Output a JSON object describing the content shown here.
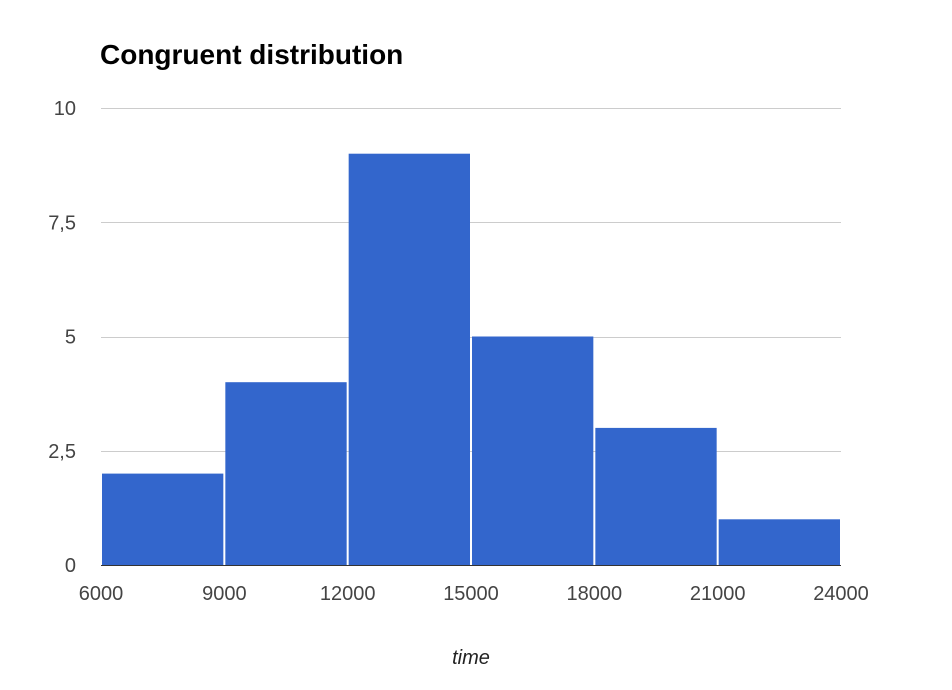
{
  "chart_data": {
    "type": "bar",
    "title": "Congruent distribution",
    "xlabel": "time",
    "ylabel": "",
    "bins": [
      {
        "start": 6000,
        "end": 9000,
        "count": 2
      },
      {
        "start": 9000,
        "end": 12000,
        "count": 4
      },
      {
        "start": 12000,
        "end": 15000,
        "count": 9
      },
      {
        "start": 15000,
        "end": 18000,
        "count": 5
      },
      {
        "start": 18000,
        "end": 21000,
        "count": 3
      },
      {
        "start": 21000,
        "end": 24000,
        "count": 1
      }
    ],
    "x_ticks": [
      "6000",
      "9000",
      "12000",
      "15000",
      "18000",
      "21000",
      "24000"
    ],
    "y_ticks": [
      "0",
      "2,5",
      "5",
      "7,5",
      "10"
    ],
    "xlim": [
      6000,
      24000
    ],
    "ylim": [
      0,
      10
    ],
    "y_tick_values": [
      0,
      2.5,
      5,
      7.5,
      10
    ],
    "grid": true,
    "legend": "none",
    "bar_color": "#3366cc"
  }
}
